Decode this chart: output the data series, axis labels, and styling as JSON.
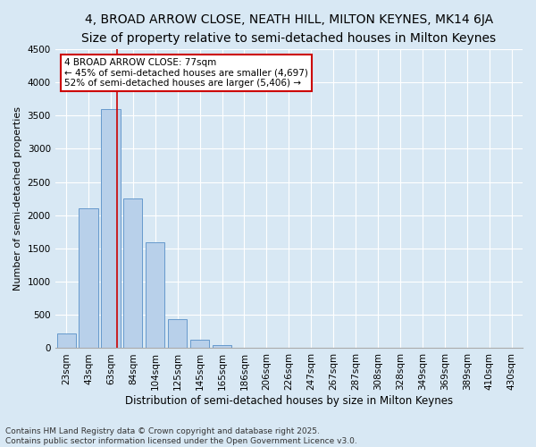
{
  "title1": "4, BROAD ARROW CLOSE, NEATH HILL, MILTON KEYNES, MK14 6JA",
  "title2": "Size of property relative to semi-detached houses in Milton Keynes",
  "xlabel": "Distribution of semi-detached houses by size in Milton Keynes",
  "ylabel": "Number of semi-detached properties",
  "categories": [
    "23sqm",
    "43sqm",
    "63sqm",
    "84sqm",
    "104sqm",
    "125sqm",
    "145sqm",
    "165sqm",
    "186sqm",
    "206sqm",
    "226sqm",
    "247sqm",
    "267sqm",
    "287sqm",
    "308sqm",
    "328sqm",
    "349sqm",
    "369sqm",
    "389sqm",
    "410sqm",
    "430sqm"
  ],
  "values": [
    220,
    2100,
    3600,
    2250,
    1600,
    430,
    130,
    50,
    0,
    0,
    0,
    0,
    0,
    0,
    0,
    0,
    0,
    0,
    0,
    0,
    0
  ],
  "bar_color": "#b8d0ea",
  "bar_edge_color": "#6699cc",
  "background_color": "#d8e8f4",
  "grid_color": "#ffffff",
  "vline_color": "#cc0000",
  "annotation_title": "4 BROAD ARROW CLOSE: 77sqm",
  "annotation_line1": "← 45% of semi-detached houses are smaller (4,697)",
  "annotation_line2": "52% of semi-detached houses are larger (5,406) →",
  "annotation_box_color": "#cc0000",
  "ylim": [
    0,
    4500
  ],
  "yticks": [
    0,
    500,
    1000,
    1500,
    2000,
    2500,
    3000,
    3500,
    4000,
    4500
  ],
  "footer1": "Contains HM Land Registry data © Crown copyright and database right 2025.",
  "footer2": "Contains public sector information licensed under the Open Government Licence v3.0.",
  "title1_fontsize": 10,
  "title2_fontsize": 9,
  "xlabel_fontsize": 8.5,
  "ylabel_fontsize": 8,
  "tick_fontsize": 7.5,
  "annotation_fontsize": 7.5,
  "footer_fontsize": 6.5
}
